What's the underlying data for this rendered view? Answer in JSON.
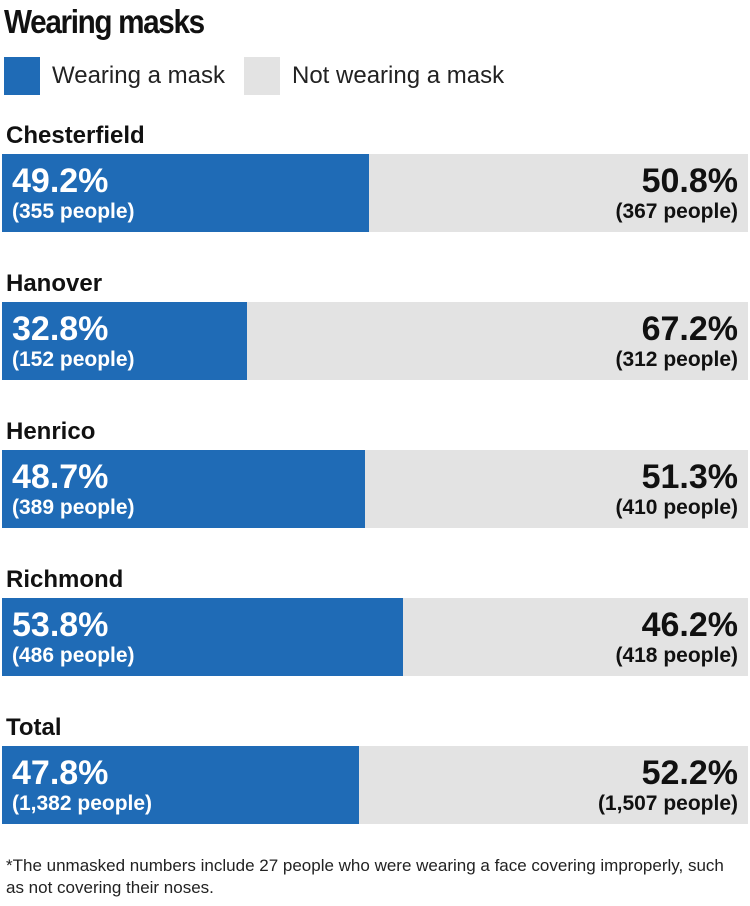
{
  "title": "Wearing masks",
  "colors": {
    "masked": "#1f6bb6",
    "unmasked": "#e3e3e3"
  },
  "legend": {
    "masked": "Wearing a mask",
    "unmasked": "Not wearing a mask"
  },
  "chart_data": {
    "type": "bar",
    "orientation": "horizontal-stacked",
    "categories": [
      "Chesterfield",
      "Hanover",
      "Henrico",
      "Richmond",
      "Total"
    ],
    "series": [
      {
        "name": "Wearing a mask",
        "values": [
          49.2,
          32.8,
          48.7,
          53.8,
          47.8
        ],
        "labels": [
          "49.2%",
          "32.8%",
          "48.7%",
          "53.8%",
          "47.8%"
        ],
        "people": [
          "(355 people)",
          "(152 people)",
          "(389 people)",
          "(486 people)",
          "(1,382 people)"
        ]
      },
      {
        "name": "Not wearing a mask",
        "values": [
          50.8,
          67.2,
          51.3,
          46.2,
          52.2
        ],
        "labels": [
          "50.8%",
          "67.2%",
          "51.3%",
          "46.2%",
          "52.2%"
        ],
        "people": [
          "(367 people)",
          "(312 people)",
          "(410 people)",
          "(418 people)",
          "(1,507 people)"
        ]
      }
    ],
    "xlim": [
      0,
      100
    ]
  },
  "footnote": "*The unmasked numbers include 27 people who were wearing a face covering improperly, such as not covering their noses."
}
